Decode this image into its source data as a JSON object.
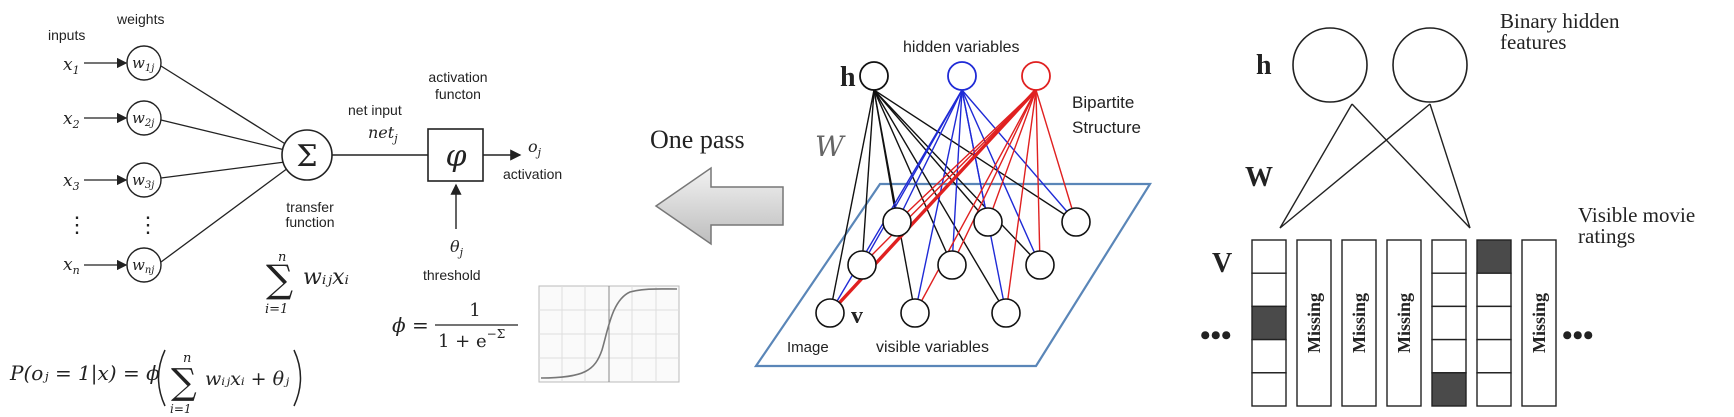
{
  "perceptron": {
    "inputs_label": "inputs",
    "weights_label": "weights",
    "inputs": [
      {
        "main": "x",
        "sub": "1"
      },
      {
        "main": "x",
        "sub": "2"
      },
      {
        "main": "x",
        "sub": "3"
      },
      {
        "main": "x",
        "sub": "n"
      }
    ],
    "weights": [
      {
        "main": "w",
        "sub": "1j"
      },
      {
        "main": "w",
        "sub": "2j"
      },
      {
        "main": "w",
        "sub": "3j"
      },
      {
        "main": "w",
        "sub": "nj"
      }
    ],
    "dots": "⋮",
    "sum_symbol": "Σ",
    "net_input_label": "net input",
    "net_main": "net",
    "net_sub": "j",
    "activation_function_label_1": "activation",
    "activation_function_label_2": "functon",
    "phi_symbol": "φ",
    "output_main": "o",
    "output_sub": "j",
    "activation_label": "activation",
    "threshold_main": "θ",
    "threshold_sub": "j",
    "threshold_label": "threshold",
    "transfer_label_1": "transfer",
    "transfer_label_2": "function",
    "sum_formula": {
      "upper": "n",
      "sigma": "∑",
      "lower": "i=1",
      "term": "wᵢⱼxᵢ"
    },
    "sigmoid_formula": {
      "lhs": "ϕ =",
      "numerator": "1",
      "denominator": "1 + e",
      "exponent": "−Σ"
    },
    "probability_formula": {
      "lhs": "P(oⱼ = 1|x) = ϕ",
      "upper": "n",
      "sigma": "∑",
      "lower": "i=1",
      "term": "wᵢⱼxᵢ + θⱼ"
    }
  },
  "arrow": {
    "label": "One pass"
  },
  "rbm_left": {
    "h_label": "h",
    "hidden_label": "hidden variables",
    "w_label": "W",
    "bipartite_1": "Bipartite",
    "bipartite_2": "Structure",
    "v_label": "v",
    "image_label": "Image",
    "visible_label": "visible variables",
    "colors": {
      "black": "#111111",
      "blue": "#1f2ad6",
      "red": "#e02020",
      "plane": "#5a86b8"
    }
  },
  "rbm_right": {
    "h_label": "h",
    "binary_1": "Binary hidden",
    "binary_2": "features",
    "w_label": "W",
    "v_label": "V",
    "visible_1": "Visible movie",
    "visible_2": "ratings",
    "ellipsis": "•••",
    "columns": [
      {
        "type": "cells",
        "filled": [
          2
        ]
      },
      {
        "type": "missing",
        "label": "Missing"
      },
      {
        "type": "missing",
        "label": "Missing"
      },
      {
        "type": "missing",
        "label": "Missing"
      },
      {
        "type": "cells",
        "filled": [
          4
        ]
      },
      {
        "type": "cells",
        "filled": [
          0
        ]
      },
      {
        "type": "missing",
        "label": "Missing"
      }
    ],
    "fill_color": "#4a4a4a"
  }
}
